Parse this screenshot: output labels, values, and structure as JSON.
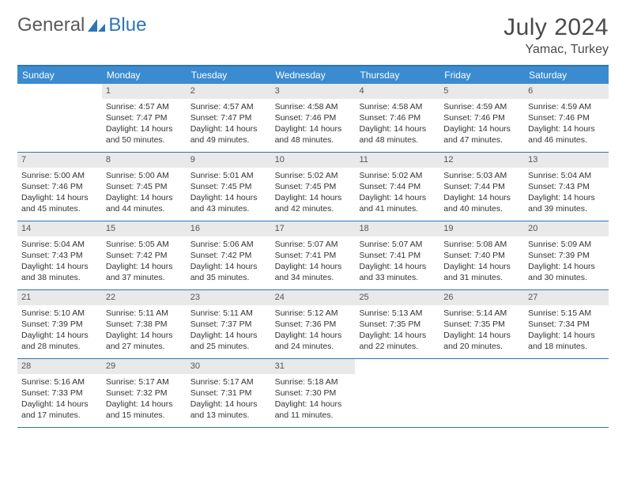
{
  "logo": {
    "text1": "General",
    "text2": "Blue"
  },
  "header": {
    "month": "July 2024",
    "location": "Yamac, Turkey"
  },
  "colors": {
    "accent": "#2e75b6",
    "header_bg": "#3a8bd0",
    "daynum_bg": "#e9e9e9",
    "text": "#333333",
    "logo_gray": "#5a5a5a"
  },
  "weekdays": [
    "Sunday",
    "Monday",
    "Tuesday",
    "Wednesday",
    "Thursday",
    "Friday",
    "Saturday"
  ],
  "weeks": [
    [
      {
        "n": "",
        "sr": "",
        "ss": "",
        "dl": ""
      },
      {
        "n": "1",
        "sr": "Sunrise: 4:57 AM",
        "ss": "Sunset: 7:47 PM",
        "dl": "Daylight: 14 hours and 50 minutes."
      },
      {
        "n": "2",
        "sr": "Sunrise: 4:57 AM",
        "ss": "Sunset: 7:47 PM",
        "dl": "Daylight: 14 hours and 49 minutes."
      },
      {
        "n": "3",
        "sr": "Sunrise: 4:58 AM",
        "ss": "Sunset: 7:46 PM",
        "dl": "Daylight: 14 hours and 48 minutes."
      },
      {
        "n": "4",
        "sr": "Sunrise: 4:58 AM",
        "ss": "Sunset: 7:46 PM",
        "dl": "Daylight: 14 hours and 48 minutes."
      },
      {
        "n": "5",
        "sr": "Sunrise: 4:59 AM",
        "ss": "Sunset: 7:46 PM",
        "dl": "Daylight: 14 hours and 47 minutes."
      },
      {
        "n": "6",
        "sr": "Sunrise: 4:59 AM",
        "ss": "Sunset: 7:46 PM",
        "dl": "Daylight: 14 hours and 46 minutes."
      }
    ],
    [
      {
        "n": "7",
        "sr": "Sunrise: 5:00 AM",
        "ss": "Sunset: 7:46 PM",
        "dl": "Daylight: 14 hours and 45 minutes."
      },
      {
        "n": "8",
        "sr": "Sunrise: 5:00 AM",
        "ss": "Sunset: 7:45 PM",
        "dl": "Daylight: 14 hours and 44 minutes."
      },
      {
        "n": "9",
        "sr": "Sunrise: 5:01 AM",
        "ss": "Sunset: 7:45 PM",
        "dl": "Daylight: 14 hours and 43 minutes."
      },
      {
        "n": "10",
        "sr": "Sunrise: 5:02 AM",
        "ss": "Sunset: 7:45 PM",
        "dl": "Daylight: 14 hours and 42 minutes."
      },
      {
        "n": "11",
        "sr": "Sunrise: 5:02 AM",
        "ss": "Sunset: 7:44 PM",
        "dl": "Daylight: 14 hours and 41 minutes."
      },
      {
        "n": "12",
        "sr": "Sunrise: 5:03 AM",
        "ss": "Sunset: 7:44 PM",
        "dl": "Daylight: 14 hours and 40 minutes."
      },
      {
        "n": "13",
        "sr": "Sunrise: 5:04 AM",
        "ss": "Sunset: 7:43 PM",
        "dl": "Daylight: 14 hours and 39 minutes."
      }
    ],
    [
      {
        "n": "14",
        "sr": "Sunrise: 5:04 AM",
        "ss": "Sunset: 7:43 PM",
        "dl": "Daylight: 14 hours and 38 minutes."
      },
      {
        "n": "15",
        "sr": "Sunrise: 5:05 AM",
        "ss": "Sunset: 7:42 PM",
        "dl": "Daylight: 14 hours and 37 minutes."
      },
      {
        "n": "16",
        "sr": "Sunrise: 5:06 AM",
        "ss": "Sunset: 7:42 PM",
        "dl": "Daylight: 14 hours and 35 minutes."
      },
      {
        "n": "17",
        "sr": "Sunrise: 5:07 AM",
        "ss": "Sunset: 7:41 PM",
        "dl": "Daylight: 14 hours and 34 minutes."
      },
      {
        "n": "18",
        "sr": "Sunrise: 5:07 AM",
        "ss": "Sunset: 7:41 PM",
        "dl": "Daylight: 14 hours and 33 minutes."
      },
      {
        "n": "19",
        "sr": "Sunrise: 5:08 AM",
        "ss": "Sunset: 7:40 PM",
        "dl": "Daylight: 14 hours and 31 minutes."
      },
      {
        "n": "20",
        "sr": "Sunrise: 5:09 AM",
        "ss": "Sunset: 7:39 PM",
        "dl": "Daylight: 14 hours and 30 minutes."
      }
    ],
    [
      {
        "n": "21",
        "sr": "Sunrise: 5:10 AM",
        "ss": "Sunset: 7:39 PM",
        "dl": "Daylight: 14 hours and 28 minutes."
      },
      {
        "n": "22",
        "sr": "Sunrise: 5:11 AM",
        "ss": "Sunset: 7:38 PM",
        "dl": "Daylight: 14 hours and 27 minutes."
      },
      {
        "n": "23",
        "sr": "Sunrise: 5:11 AM",
        "ss": "Sunset: 7:37 PM",
        "dl": "Daylight: 14 hours and 25 minutes."
      },
      {
        "n": "24",
        "sr": "Sunrise: 5:12 AM",
        "ss": "Sunset: 7:36 PM",
        "dl": "Daylight: 14 hours and 24 minutes."
      },
      {
        "n": "25",
        "sr": "Sunrise: 5:13 AM",
        "ss": "Sunset: 7:35 PM",
        "dl": "Daylight: 14 hours and 22 minutes."
      },
      {
        "n": "26",
        "sr": "Sunrise: 5:14 AM",
        "ss": "Sunset: 7:35 PM",
        "dl": "Daylight: 14 hours and 20 minutes."
      },
      {
        "n": "27",
        "sr": "Sunrise: 5:15 AM",
        "ss": "Sunset: 7:34 PM",
        "dl": "Daylight: 14 hours and 18 minutes."
      }
    ],
    [
      {
        "n": "28",
        "sr": "Sunrise: 5:16 AM",
        "ss": "Sunset: 7:33 PM",
        "dl": "Daylight: 14 hours and 17 minutes."
      },
      {
        "n": "29",
        "sr": "Sunrise: 5:17 AM",
        "ss": "Sunset: 7:32 PM",
        "dl": "Daylight: 14 hours and 15 minutes."
      },
      {
        "n": "30",
        "sr": "Sunrise: 5:17 AM",
        "ss": "Sunset: 7:31 PM",
        "dl": "Daylight: 14 hours and 13 minutes."
      },
      {
        "n": "31",
        "sr": "Sunrise: 5:18 AM",
        "ss": "Sunset: 7:30 PM",
        "dl": "Daylight: 14 hours and 11 minutes."
      },
      {
        "n": "",
        "sr": "",
        "ss": "",
        "dl": ""
      },
      {
        "n": "",
        "sr": "",
        "ss": "",
        "dl": ""
      },
      {
        "n": "",
        "sr": "",
        "ss": "",
        "dl": ""
      }
    ]
  ]
}
